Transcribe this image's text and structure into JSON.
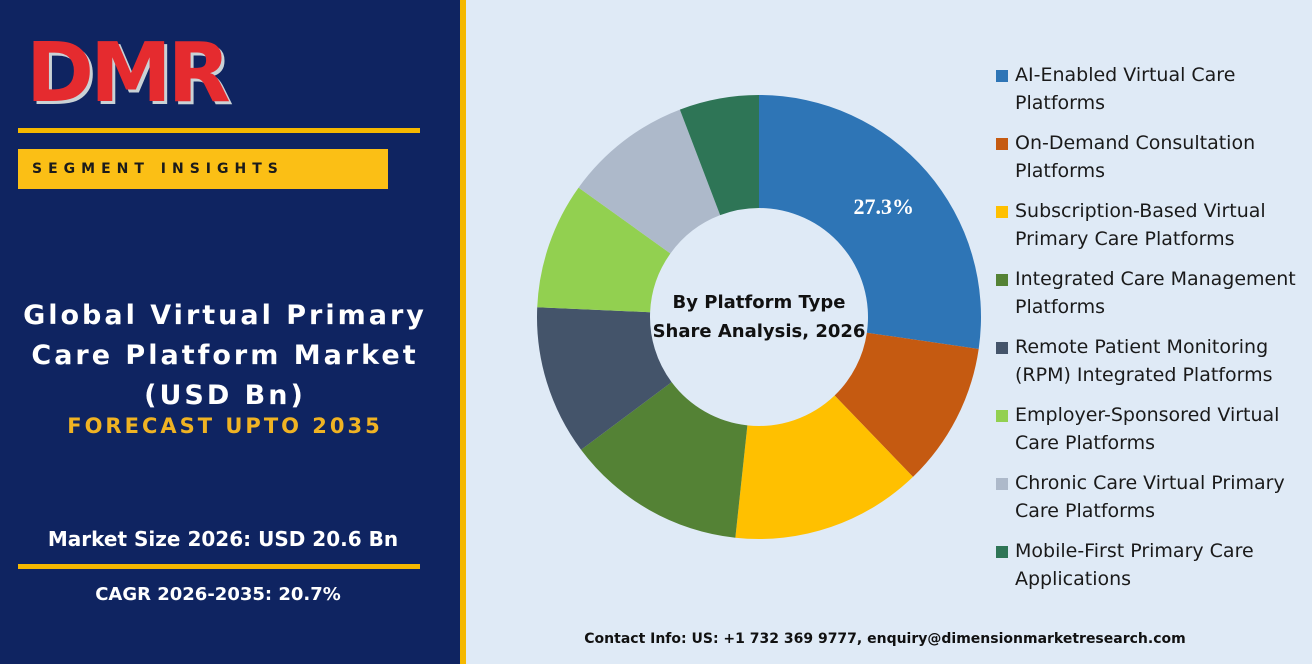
{
  "brand": {
    "logo": "DMR",
    "section": "SEGMENT INSIGHTS",
    "title": "Global Virtual Primary Care Platform Market (USD Bn)",
    "forecast": "FORECAST UPTO 2035",
    "market_size": "Market Size 2026: USD 20.6 Bn",
    "cagr": "CAGR 2026-2035: 20.7%"
  },
  "chart_data": {
    "type": "donut",
    "title": "By Platform Type Share Analysis, 2026",
    "categories": [
      "AI-Enabled Virtual Care Platforms",
      "On-Demand Consultation Platforms",
      "Subscription-Based Virtual Primary Care Platforms",
      "Integrated Care Management Platforms",
      "Remote Patient Monitoring (RPM) Integrated Platforms",
      "Employer-Sponsored Virtual Care Platforms",
      "Chronic Care Virtual Primary Care Platforms",
      "Mobile-First Primary Care Applications"
    ],
    "values": [
      27.3,
      10.5,
      13.9,
      13.1,
      10.9,
      9.2,
      9.3,
      5.8
    ],
    "value_labels": [
      "27.3%",
      null,
      null,
      null,
      null,
      null,
      null,
      null
    ],
    "colors": [
      "#2e75b6",
      "#c55a11",
      "#ffc000",
      "#548235",
      "#44546a",
      "#92d050",
      "#adb9ca",
      "#2e7556"
    ],
    "legend": "right"
  },
  "contact": "Contact Info: US: +1 732 369 9777, enquiry@dimensionmarketresearch.com"
}
